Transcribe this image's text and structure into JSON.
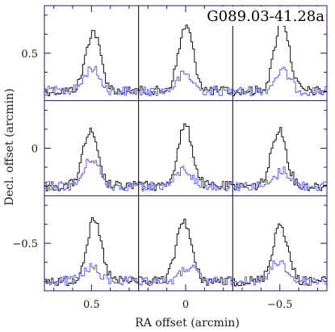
{
  "chart_data": {
    "type": "line",
    "title": "G089.03-41.28a",
    "xlabel": "RA offset (arcmin)",
    "ylabel": "Decl. offset (arcmin)",
    "x_ticks": [
      {
        "value": 0.5,
        "label": "0.5"
      },
      {
        "value": 0,
        "label": "0"
      },
      {
        "value": -0.5,
        "label": "−0.5"
      }
    ],
    "y_ticks": [
      {
        "value": 0.5,
        "label": "0.5"
      },
      {
        "value": 0,
        "label": "0"
      },
      {
        "value": -0.5,
        "label": "−0.5"
      }
    ],
    "xlim": [
      0.75,
      -0.75
    ],
    "ylim": [
      -0.75,
      0.75
    ],
    "grid": {
      "rows": 3,
      "cols": 3,
      "ra_centers": [
        0.5,
        0,
        -0.5
      ],
      "dec_centers": [
        0.5,
        0,
        -0.5
      ]
    },
    "series": [
      {
        "line": "black",
        "peak_amplitudes": [
          [
            0.78,
            0.84,
            0.92
          ],
          [
            0.7,
            0.78,
            0.74
          ],
          [
            0.78,
            0.8,
            0.74
          ]
        ]
      },
      {
        "line": "blue",
        "peak_amplitudes": [
          [
            0.3,
            0.22,
            0.26
          ],
          [
            0.36,
            0.22,
            0.2
          ],
          [
            0.18,
            0.18,
            0.26
          ]
        ]
      }
    ],
    "colors": {
      "black_line": "#111111",
      "blue_line": "#6060e0",
      "frame": "#1a1a6e"
    }
  }
}
